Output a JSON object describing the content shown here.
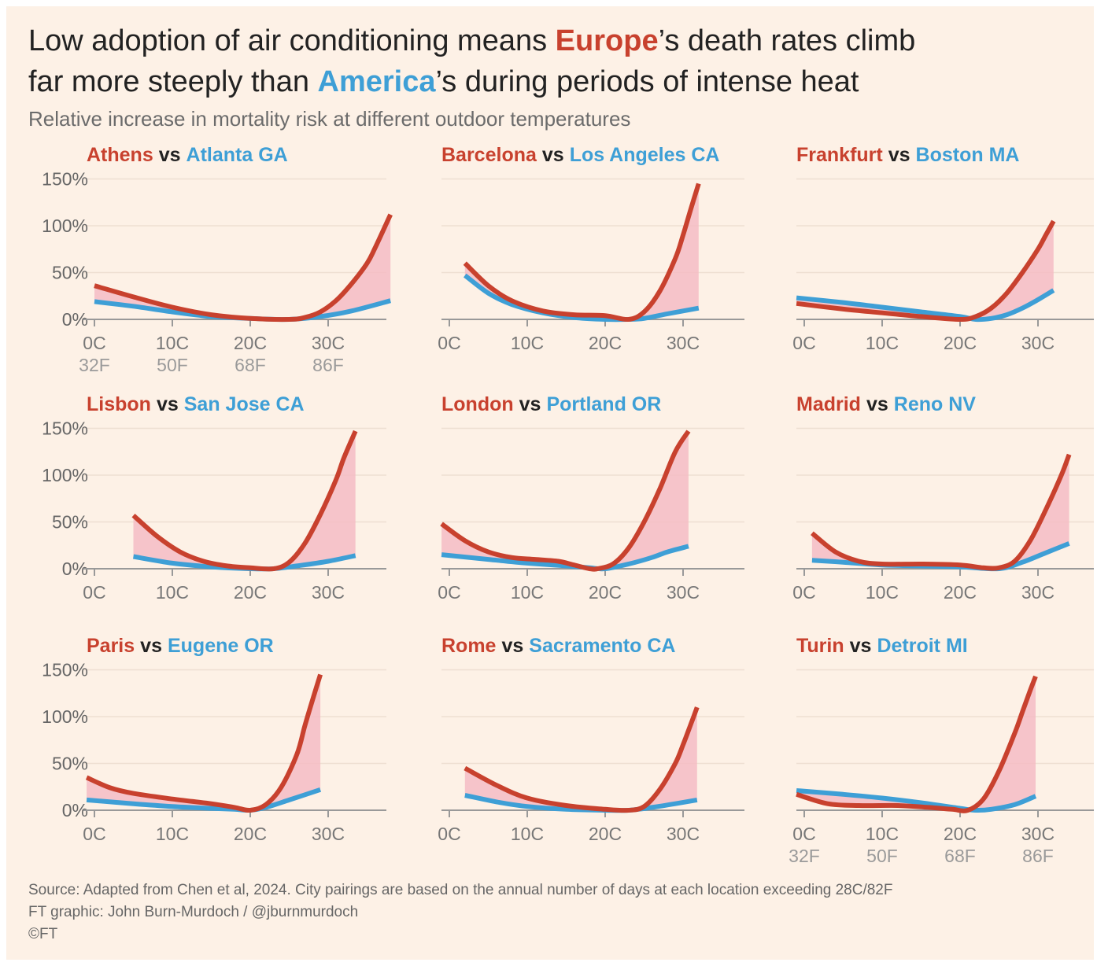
{
  "header": {
    "title_part1": "Low adoption of air conditioning means ",
    "title_europe": "Europe",
    "title_part2": "’s death rates climb",
    "title_part3": "far more steeply than ",
    "title_america": "America",
    "title_part4": "’s during periods of intense heat",
    "subtitle": "Relative increase in mortality risk at different outdoor temperatures"
  },
  "footer": {
    "source": "Source: Adapted from Chen et al, 2024. City pairings are based on the annual number of days at each location exceeding 28C/82F",
    "credit": "FT graphic: John Burn-Murdoch / @jburnmurdoch",
    "copyright": "©FT"
  },
  "colors": {
    "europe": "#c8412e",
    "america": "#3e9fd6",
    "fill": "#f5bcc4",
    "axis": "#999999",
    "grid": "#eedfd2"
  },
  "chart_data": [
    {
      "type": "line",
      "title_eu": "Athens",
      "vs": "vs",
      "title_us": "Atlanta GA",
      "xticks": [
        "0C",
        "10C",
        "20C",
        "30C"
      ],
      "xticks_f": [
        "32F",
        "50F",
        "68F",
        "86F"
      ],
      "yticks": [
        "150%",
        "100%",
        "50%",
        "0%"
      ],
      "xlim": [
        0,
        38
      ],
      "ylim": [
        0,
        150
      ],
      "series": [
        {
          "name": "Athens",
          "x": [
            0,
            5,
            10,
            15,
            20,
            25,
            27,
            29,
            31,
            33,
            35,
            36,
            38
          ],
          "y": [
            36,
            24,
            13,
            5,
            1,
            0,
            2,
            8,
            20,
            38,
            60,
            76,
            112
          ]
        },
        {
          "name": "Atlanta GA",
          "x": [
            0,
            5,
            10,
            15,
            20,
            25,
            29,
            33,
            38
          ],
          "y": [
            19,
            14,
            8,
            3,
            1,
            0,
            3,
            9,
            20
          ]
        }
      ]
    },
    {
      "type": "line",
      "title_eu": "Barcelona",
      "vs": "vs",
      "title_us": "Los Angeles CA",
      "xticks": [
        "0C",
        "10C",
        "20C",
        "30C"
      ],
      "xticks_f": [],
      "yticks": [],
      "xlim": [
        0,
        38
      ],
      "ylim": [
        0,
        150
      ],
      "series": [
        {
          "name": "Barcelona",
          "x": [
            2,
            5,
            8,
            12,
            16,
            20,
            23,
            25,
            27,
            29,
            30,
            31,
            32
          ],
          "y": [
            60,
            36,
            20,
            9,
            5,
            4,
            0,
            8,
            30,
            65,
            90,
            118,
            145
          ]
        },
        {
          "name": "Los Angeles CA",
          "x": [
            2,
            5,
            8,
            12,
            16,
            20,
            23,
            25,
            28,
            32
          ],
          "y": [
            47,
            28,
            16,
            7,
            2,
            0,
            0,
            1,
            6,
            12
          ]
        }
      ]
    },
    {
      "type": "line",
      "title_eu": "Frankfurt",
      "vs": "vs",
      "title_us": "Boston MA",
      "xticks": [
        "0C",
        "10C",
        "20C",
        "30C"
      ],
      "xticks_f": [],
      "yticks": [],
      "xlim": [
        0,
        38
      ],
      "ylim": [
        0,
        150
      ],
      "series": [
        {
          "name": "Frankfurt",
          "x": [
            -1,
            5,
            10,
            15,
            20,
            22,
            24,
            26,
            28,
            30,
            31,
            32
          ],
          "y": [
            17,
            11,
            7,
            3,
            0,
            3,
            12,
            28,
            50,
            75,
            90,
            105
          ]
        },
        {
          "name": "Boston MA",
          "x": [
            -1,
            5,
            10,
            15,
            20,
            22,
            24,
            26,
            28,
            30,
            32
          ],
          "y": [
            23,
            18,
            13,
            8,
            3,
            0,
            1,
            5,
            12,
            21,
            31
          ]
        }
      ]
    },
    {
      "type": "line",
      "title_eu": "Lisbon",
      "vs": "vs",
      "title_us": "San Jose CA",
      "xticks": [
        "0C",
        "10C",
        "20C",
        "30C"
      ],
      "xticks_f": [],
      "yticks": [
        "150%",
        "100%",
        "50%",
        "0%"
      ],
      "xlim": [
        0,
        38
      ],
      "ylim": [
        0,
        150
      ],
      "series": [
        {
          "name": "Lisbon",
          "x": [
            5,
            8,
            11,
            14,
            17,
            20,
            23,
            25,
            27,
            29,
            31,
            32,
            33.5
          ],
          "y": [
            57,
            35,
            18,
            8,
            3,
            1,
            0,
            7,
            27,
            58,
            95,
            118,
            147
          ]
        },
        {
          "name": "San Jose CA",
          "x": [
            5,
            10,
            15,
            20,
            23,
            26,
            30,
            33.5
          ],
          "y": [
            13,
            6,
            2,
            0,
            0,
            3,
            8,
            14
          ]
        }
      ]
    },
    {
      "type": "line",
      "title_eu": "London",
      "vs": "vs",
      "title_us": "Portland OR",
      "xticks": [
        "0C",
        "10C",
        "20C",
        "30C"
      ],
      "xticks_f": [],
      "yticks": [],
      "xlim": [
        0,
        38
      ],
      "ylim": [
        0,
        150
      ],
      "series": [
        {
          "name": "London",
          "x": [
            -1,
            2,
            5,
            8,
            11,
            14,
            16,
            18,
            19,
            21,
            23,
            25,
            27,
            29,
            30.7
          ],
          "y": [
            48,
            30,
            18,
            12,
            10,
            8,
            4,
            0,
            0,
            5,
            22,
            50,
            85,
            125,
            147
          ]
        },
        {
          "name": "Portland OR",
          "x": [
            -1,
            5,
            10,
            15,
            18,
            20,
            23,
            26,
            28,
            30.7
          ],
          "y": [
            15,
            10,
            6,
            3,
            1,
            0,
            5,
            12,
            18,
            24
          ]
        }
      ]
    },
    {
      "type": "line",
      "title_eu": "Madrid",
      "vs": "vs",
      "title_us": "Reno NV",
      "xticks": [
        "0C",
        "10C",
        "20C",
        "30C"
      ],
      "xticks_f": [],
      "yticks": [],
      "xlim": [
        0,
        38
      ],
      "ylim": [
        0,
        150
      ],
      "series": [
        {
          "name": "Madrid",
          "x": [
            1,
            4,
            7,
            10,
            15,
            20,
            23,
            25,
            27,
            29,
            31,
            33,
            34
          ],
          "y": [
            38,
            18,
            8,
            5,
            5,
            4,
            1,
            1,
            8,
            30,
            63,
            100,
            122
          ]
        },
        {
          "name": "Reno NV",
          "x": [
            1,
            5,
            10,
            15,
            20,
            25,
            28,
            31,
            34
          ],
          "y": [
            9,
            7,
            4,
            3,
            2,
            0,
            7,
            17,
            27
          ]
        }
      ]
    },
    {
      "type": "line",
      "title_eu": "Paris",
      "vs": "vs",
      "title_us": "Eugene OR",
      "xticks": [
        "0C",
        "10C",
        "20C",
        "30C"
      ],
      "xticks_f": [],
      "yticks": [
        "150%",
        "100%",
        "50%",
        "0%"
      ],
      "xlim": [
        0,
        38
      ],
      "ylim": [
        0,
        150
      ],
      "series": [
        {
          "name": "Paris",
          "x": [
            -1,
            2,
            5,
            10,
            15,
            18,
            20,
            22,
            24,
            26,
            27,
            28,
            29
          ],
          "y": [
            35,
            24,
            18,
            12,
            7,
            3,
            0,
            6,
            25,
            60,
            90,
            118,
            145
          ]
        },
        {
          "name": "Eugene OR",
          "x": [
            -1,
            5,
            10,
            15,
            18,
            20,
            22,
            25,
            29
          ],
          "y": [
            11,
            7,
            4,
            2,
            1,
            0,
            3,
            11,
            22
          ]
        }
      ]
    },
    {
      "type": "line",
      "title_eu": "Rome",
      "vs": "vs",
      "title_us": "Sacramento CA",
      "xticks": [
        "0C",
        "10C",
        "20C",
        "30C"
      ],
      "xticks_f": [],
      "yticks": [],
      "xlim": [
        0,
        38
      ],
      "ylim": [
        0,
        150
      ],
      "series": [
        {
          "name": "Rome",
          "x": [
            2,
            6,
            10,
            15,
            20,
            23,
            25,
            27,
            29,
            30,
            31,
            31.8
          ],
          "y": [
            45,
            27,
            13,
            5,
            1,
            0,
            4,
            22,
            50,
            70,
            92,
            110
          ]
        },
        {
          "name": "Sacramento CA",
          "x": [
            2,
            6,
            10,
            15,
            20,
            23,
            26,
            29,
            31.8
          ],
          "y": [
            16,
            9,
            4,
            1,
            0,
            0,
            3,
            7,
            11
          ]
        }
      ]
    },
    {
      "type": "line",
      "title_eu": "Turin",
      "vs": "vs",
      "title_us": "Detroit MI",
      "xticks": [
        "0C",
        "10C",
        "20C",
        "30C"
      ],
      "xticks_f": [
        "32F",
        "50F",
        "68F",
        "86F"
      ],
      "yticks": [],
      "xlim": [
        0,
        38
      ],
      "ylim": [
        0,
        150
      ],
      "series": [
        {
          "name": "Turin",
          "x": [
            -1,
            3,
            7,
            12,
            16,
            19,
            21,
            23,
            25,
            27,
            28,
            29,
            29.7
          ],
          "y": [
            17,
            7,
            5,
            5,
            3,
            1,
            0,
            12,
            42,
            82,
            105,
            128,
            143
          ]
        },
        {
          "name": "Detroit MI",
          "x": [
            -1,
            5,
            10,
            15,
            20,
            22,
            24,
            27,
            29.7
          ],
          "y": [
            21,
            17,
            13,
            8,
            2,
            0,
            1,
            6,
            15
          ]
        }
      ]
    }
  ]
}
